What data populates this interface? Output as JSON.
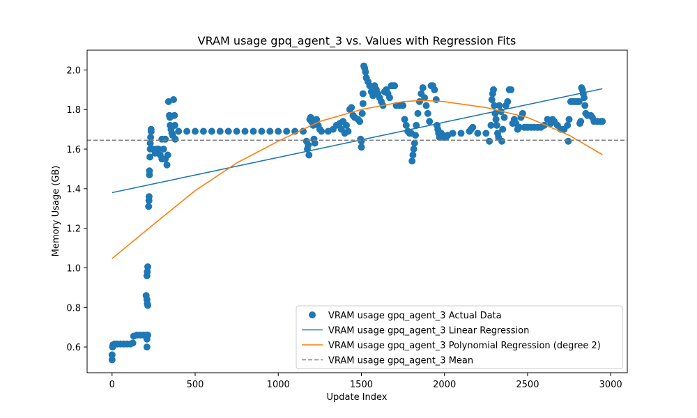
{
  "chart_data": {
    "type": "scatter",
    "title": "VRAM usage gpq_agent_3 vs. Values with Regression Fits",
    "xlabel": "Update Index",
    "ylabel": "Memory Usage (GB)",
    "xlim": [
      -150,
      3100
    ],
    "ylim": [
      0.47,
      2.1
    ],
    "x_ticks": [
      0,
      500,
      1000,
      1500,
      2000,
      2500,
      3000
    ],
    "y_ticks": [
      0.6,
      0.8,
      1.0,
      1.2,
      1.4,
      1.6,
      1.8,
      2.0
    ],
    "x_tick_labels": [
      "0",
      "500",
      "1000",
      "1500",
      "2000",
      "2500",
      "3000"
    ],
    "y_tick_labels": [
      "0.6",
      "0.8",
      "1.0",
      "1.2",
      "1.4",
      "1.6",
      "1.8",
      "2.0"
    ],
    "grid": false,
    "legend_position": "lower-right",
    "series": [
      {
        "name": "VRAM usage gpq_agent_3 Actual Data",
        "kind": "scatter",
        "color": "#1f77b4",
        "points": [
          [
            0,
            0.535
          ],
          [
            0,
            0.56
          ],
          [
            3,
            0.6
          ],
          [
            5,
            0.61
          ],
          [
            15,
            0.615
          ],
          [
            30,
            0.615
          ],
          [
            50,
            0.615
          ],
          [
            70,
            0.615
          ],
          [
            90,
            0.615
          ],
          [
            110,
            0.615
          ],
          [
            125,
            0.62
          ],
          [
            130,
            0.655
          ],
          [
            150,
            0.66
          ],
          [
            170,
            0.66
          ],
          [
            190,
            0.66
          ],
          [
            205,
            0.66
          ],
          [
            210,
            0.64
          ],
          [
            210,
            0.6
          ],
          [
            215,
            0.66
          ],
          [
            205,
            0.86
          ],
          [
            210,
            0.84
          ],
          [
            212,
            0.82
          ],
          [
            215,
            0.81
          ],
          [
            210,
            0.96
          ],
          [
            212,
            0.98
          ],
          [
            215,
            1.005
          ],
          [
            220,
            1.31
          ],
          [
            222,
            1.34
          ],
          [
            223,
            1.36
          ],
          [
            225,
            1.47
          ],
          [
            225,
            1.49
          ],
          [
            228,
            1.56
          ],
          [
            230,
            1.6
          ],
          [
            230,
            1.63
          ],
          [
            232,
            1.66
          ],
          [
            235,
            1.69
          ],
          [
            235,
            1.7
          ],
          [
            245,
            1.6
          ],
          [
            260,
            1.58
          ],
          [
            270,
            1.6
          ],
          [
            280,
            1.6
          ],
          [
            290,
            1.57
          ],
          [
            300,
            1.55
          ],
          [
            310,
            1.6
          ],
          [
            320,
            1.55
          ],
          [
            330,
            1.52
          ],
          [
            335,
            1.57
          ],
          [
            300,
            1.65
          ],
          [
            320,
            1.65
          ],
          [
            340,
            1.84
          ],
          [
            345,
            1.77
          ],
          [
            348,
            1.76
          ],
          [
            350,
            1.72
          ],
          [
            355,
            1.7
          ],
          [
            360,
            1.68
          ],
          [
            365,
            1.67
          ],
          [
            370,
            1.85
          ],
          [
            375,
            1.77
          ],
          [
            378,
            1.72
          ],
          [
            380,
            1.65
          ],
          [
            400,
            1.69
          ],
          [
            450,
            1.69
          ],
          [
            500,
            1.69
          ],
          [
            550,
            1.69
          ],
          [
            600,
            1.69
          ],
          [
            650,
            1.69
          ],
          [
            700,
            1.69
          ],
          [
            750,
            1.69
          ],
          [
            800,
            1.69
          ],
          [
            850,
            1.69
          ],
          [
            900,
            1.69
          ],
          [
            950,
            1.69
          ],
          [
            1000,
            1.69
          ],
          [
            1050,
            1.69
          ],
          [
            1100,
            1.69
          ],
          [
            1150,
            1.69
          ],
          [
            1170,
            1.64
          ],
          [
            1175,
            1.6
          ],
          [
            1180,
            1.62
          ],
          [
            1185,
            1.57
          ],
          [
            1190,
            1.75
          ],
          [
            1195,
            1.76
          ],
          [
            1200,
            1.74
          ],
          [
            1210,
            1.72
          ],
          [
            1215,
            1.65
          ],
          [
            1220,
            1.63
          ],
          [
            1230,
            1.75
          ],
          [
            1240,
            1.72
          ],
          [
            1250,
            1.7
          ],
          [
            1260,
            1.69
          ],
          [
            1300,
            1.69
          ],
          [
            1330,
            1.7
          ],
          [
            1350,
            1.72
          ],
          [
            1370,
            1.73
          ],
          [
            1380,
            1.7
          ],
          [
            1390,
            1.74
          ],
          [
            1400,
            1.68
          ],
          [
            1410,
            1.72
          ],
          [
            1420,
            1.69
          ],
          [
            1430,
            1.8
          ],
          [
            1440,
            1.81
          ],
          [
            1450,
            1.77
          ],
          [
            1460,
            1.76
          ],
          [
            1480,
            1.75
          ],
          [
            1490,
            1.74
          ],
          [
            1495,
            1.65
          ],
          [
            1500,
            1.64
          ],
          [
            1500,
            1.61
          ],
          [
            1505,
            1.78
          ],
          [
            1510,
            1.83
          ],
          [
            1510,
            1.88
          ],
          [
            1515,
            2.02
          ],
          [
            1520,
            2.01
          ],
          [
            1525,
            1.99
          ],
          [
            1530,
            1.96
          ],
          [
            1540,
            1.94
          ],
          [
            1550,
            1.92
          ],
          [
            1560,
            1.89
          ],
          [
            1570,
            1.87
          ],
          [
            1580,
            1.92
          ],
          [
            1590,
            1.9
          ],
          [
            1600,
            1.88
          ],
          [
            1610,
            1.86
          ],
          [
            1620,
            1.84
          ],
          [
            1630,
            1.82
          ],
          [
            1640,
            1.89
          ],
          [
            1650,
            1.9
          ],
          [
            1660,
            1.88
          ],
          [
            1670,
            1.86
          ],
          [
            1680,
            1.92
          ],
          [
            1690,
            1.92
          ],
          [
            1700,
            1.92
          ],
          [
            1710,
            1.82
          ],
          [
            1730,
            1.82
          ],
          [
            1750,
            1.82
          ],
          [
            1760,
            1.75
          ],
          [
            1770,
            1.72
          ],
          [
            1780,
            1.69
          ],
          [
            1790,
            1.68
          ],
          [
            1800,
            1.68
          ],
          [
            1805,
            1.54
          ],
          [
            1810,
            1.57
          ],
          [
            1815,
            1.6
          ],
          [
            1820,
            1.63
          ],
          [
            1825,
            1.67
          ],
          [
            1830,
            1.72
          ],
          [
            1840,
            1.78
          ],
          [
            1850,
            1.84
          ],
          [
            1860,
            1.88
          ],
          [
            1870,
            1.91
          ],
          [
            1880,
            1.86
          ],
          [
            1890,
            1.82
          ],
          [
            1900,
            1.78
          ],
          [
            1910,
            1.74
          ],
          [
            1920,
            1.92
          ],
          [
            1930,
            1.92
          ],
          [
            1940,
            1.9
          ],
          [
            1950,
            1.85
          ],
          [
            1955,
            1.72
          ],
          [
            1960,
            1.7
          ],
          [
            1965,
            1.68
          ],
          [
            1970,
            1.66
          ],
          [
            1980,
            1.68
          ],
          [
            1990,
            1.67
          ],
          [
            2000,
            1.66
          ],
          [
            2010,
            1.66
          ],
          [
            2020,
            1.67
          ],
          [
            2050,
            1.68
          ],
          [
            2100,
            1.68
          ],
          [
            2150,
            1.69
          ],
          [
            2160,
            1.7
          ],
          [
            2170,
            1.71
          ],
          [
            2200,
            1.68
          ],
          [
            2250,
            1.68
          ],
          [
            2270,
            1.64
          ],
          [
            2280,
            1.72
          ],
          [
            2285,
            1.85
          ],
          [
            2290,
            1.88
          ],
          [
            2295,
            1.9
          ],
          [
            2300,
            1.82
          ],
          [
            2305,
            1.78
          ],
          [
            2310,
            1.75
          ],
          [
            2315,
            1.72
          ],
          [
            2320,
            1.68
          ],
          [
            2325,
            1.66
          ],
          [
            2330,
            1.82
          ],
          [
            2340,
            1.79
          ],
          [
            2345,
            1.64
          ],
          [
            2350,
            1.7
          ],
          [
            2360,
            1.76
          ],
          [
            2370,
            1.82
          ],
          [
            2380,
            1.84
          ],
          [
            2390,
            1.9
          ],
          [
            2400,
            1.9
          ],
          [
            2410,
            1.73
          ],
          [
            2420,
            1.75
          ],
          [
            2430,
            1.73
          ],
          [
            2440,
            1.7
          ],
          [
            2450,
            1.71
          ],
          [
            2460,
            1.76
          ],
          [
            2470,
            1.78
          ],
          [
            2480,
            1.71
          ],
          [
            2500,
            1.71
          ],
          [
            2520,
            1.71
          ],
          [
            2540,
            1.71
          ],
          [
            2560,
            1.71
          ],
          [
            2580,
            1.71
          ],
          [
            2600,
            1.72
          ],
          [
            2620,
            1.75
          ],
          [
            2640,
            1.73
          ],
          [
            2650,
            1.75
          ],
          [
            2660,
            1.74
          ],
          [
            2680,
            1.72
          ],
          [
            2700,
            1.7
          ],
          [
            2720,
            1.7
          ],
          [
            2740,
            1.72
          ],
          [
            2745,
            1.64
          ],
          [
            2750,
            1.75
          ],
          [
            2760,
            1.84
          ],
          [
            2770,
            1.84
          ],
          [
            2780,
            1.84
          ],
          [
            2790,
            1.84
          ],
          [
            2800,
            1.84
          ],
          [
            2810,
            1.84
          ],
          [
            2815,
            1.73
          ],
          [
            2820,
            1.74
          ],
          [
            2825,
            1.91
          ],
          [
            2830,
            1.9
          ],
          [
            2835,
            1.88
          ],
          [
            2840,
            1.86
          ],
          [
            2845,
            1.82
          ],
          [
            2850,
            1.78
          ],
          [
            2860,
            1.77
          ],
          [
            2880,
            1.77
          ],
          [
            2890,
            1.76
          ],
          [
            2900,
            1.74
          ],
          [
            2920,
            1.74
          ],
          [
            2940,
            1.74
          ],
          [
            2950,
            1.74
          ]
        ]
      },
      {
        "name": "VRAM usage gpq_agent_3 Linear Regression",
        "kind": "line",
        "color": "#1f77b4",
        "points": [
          [
            0,
            1.38
          ],
          [
            2950,
            1.905
          ]
        ]
      },
      {
        "name": "VRAM usage gpq_agent_3 Polynomial Regression (degree 2)",
        "kind": "line",
        "color": "#ff7f0e",
        "points": [
          [
            0,
            1.047
          ],
          [
            250,
            1.22
          ],
          [
            500,
            1.39
          ],
          [
            750,
            1.53
          ],
          [
            1000,
            1.64
          ],
          [
            1250,
            1.74
          ],
          [
            1500,
            1.8
          ],
          [
            1750,
            1.84
          ],
          [
            1870,
            1.846
          ],
          [
            2000,
            1.84
          ],
          [
            2250,
            1.81
          ],
          [
            2500,
            1.76
          ],
          [
            2750,
            1.67
          ],
          [
            2950,
            1.572
          ]
        ]
      },
      {
        "name": "VRAM usage gpq_agent_3 Mean",
        "kind": "hline",
        "color": "#808080",
        "y": 1.645
      }
    ]
  }
}
